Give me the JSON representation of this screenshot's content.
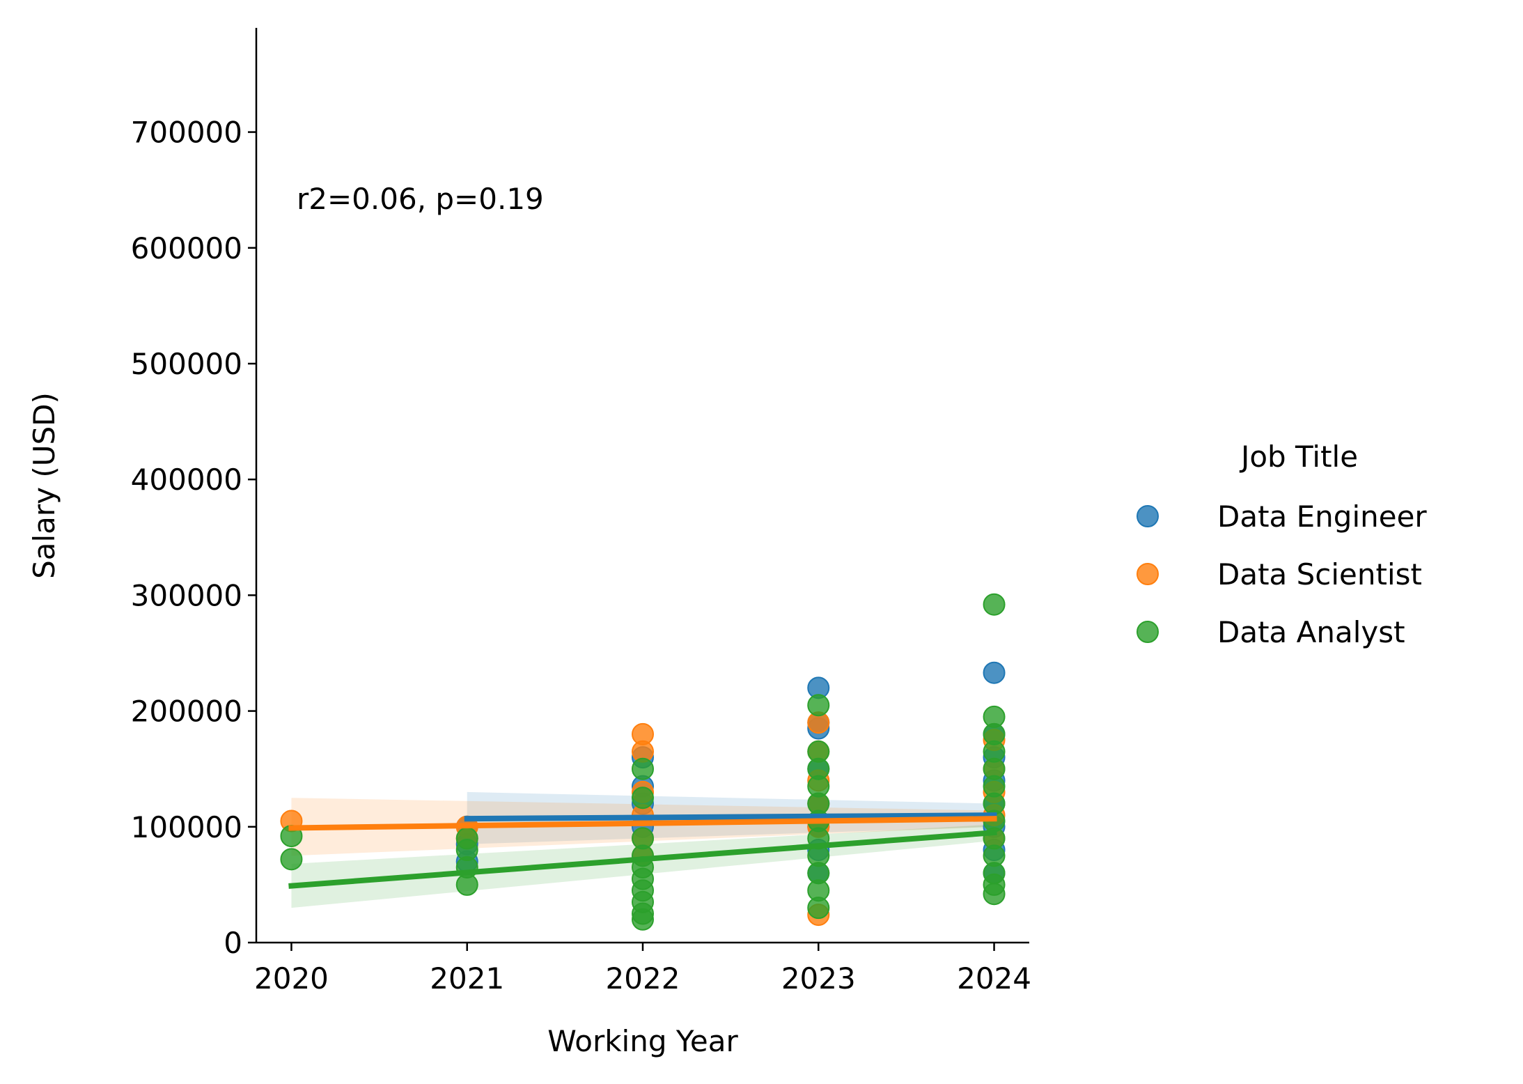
{
  "chart_data": {
    "type": "scatter",
    "xlabel": "Working Year",
    "ylabel": "Salary (USD)",
    "xlim": [
      2019.8,
      2024.2
    ],
    "ylim": [
      0,
      790000
    ],
    "xticks": [
      "2020",
      "2021",
      "2022",
      "2023",
      "2024"
    ],
    "yticks": [
      "0",
      "100000",
      "200000",
      "300000",
      "400000",
      "500000",
      "600000",
      "700000"
    ],
    "annotation": "r2=0.06, p=0.19",
    "grid": false,
    "legend": {
      "title": "Job Title",
      "placement": "right"
    },
    "series": [
      {
        "name": "Data Engineer",
        "color": "#1f77b4",
        "points": [
          [
            2021,
            70000
          ],
          [
            2021,
            85000
          ],
          [
            2021,
            100000
          ],
          [
            2022,
            160000
          ],
          [
            2022,
            135000
          ],
          [
            2022,
            120000
          ],
          [
            2022,
            100000
          ],
          [
            2023,
            220000
          ],
          [
            2023,
            190000
          ],
          [
            2023,
            185000
          ],
          [
            2023,
            150000
          ],
          [
            2023,
            120000
          ],
          [
            2023,
            100000
          ],
          [
            2023,
            80000
          ],
          [
            2023,
            60000
          ],
          [
            2024,
            233000
          ],
          [
            2024,
            180000
          ],
          [
            2024,
            160000
          ],
          [
            2024,
            140000
          ],
          [
            2024,
            120000
          ],
          [
            2024,
            100000
          ],
          [
            2024,
            80000
          ],
          [
            2024,
            60000
          ]
        ],
        "fit": {
          "x": [
            2021,
            2024
          ],
          "y": [
            107000,
            110000
          ]
        },
        "ci": {
          "x": [
            2021,
            2024
          ],
          "lower": [
            85000,
            100000
          ],
          "upper": [
            130000,
            120000
          ]
        }
      },
      {
        "name": "Data Scientist",
        "color": "#ff7f0e",
        "points": [
          [
            2020,
            105000
          ],
          [
            2021,
            100000
          ],
          [
            2021,
            90000
          ],
          [
            2022,
            180000
          ],
          [
            2022,
            165000
          ],
          [
            2022,
            130000
          ],
          [
            2022,
            110000
          ],
          [
            2022,
            90000
          ],
          [
            2022,
            75000
          ],
          [
            2023,
            190000
          ],
          [
            2023,
            165000
          ],
          [
            2023,
            140000
          ],
          [
            2023,
            120000
          ],
          [
            2023,
            100000
          ],
          [
            2023,
            24000
          ],
          [
            2024,
            175000
          ],
          [
            2024,
            150000
          ],
          [
            2024,
            130000
          ],
          [
            2024,
            110000
          ],
          [
            2024,
            90000
          ]
        ],
        "fit": {
          "x": [
            2020,
            2024
          ],
          "y": [
            99000,
            107000
          ]
        },
        "ci": {
          "x": [
            2020,
            2024
          ],
          "lower": [
            75000,
            100000
          ],
          "upper": [
            125000,
            114000
          ]
        }
      },
      {
        "name": "Data Analyst",
        "color": "#2ca02c",
        "points": [
          [
            2020,
            92000
          ],
          [
            2020,
            72000
          ],
          [
            2021,
            90000
          ],
          [
            2021,
            80000
          ],
          [
            2021,
            65000
          ],
          [
            2021,
            50000
          ],
          [
            2022,
            150000
          ],
          [
            2022,
            125000
          ],
          [
            2022,
            90000
          ],
          [
            2022,
            75000
          ],
          [
            2022,
            65000
          ],
          [
            2022,
            55000
          ],
          [
            2022,
            45000
          ],
          [
            2022,
            35000
          ],
          [
            2022,
            25000
          ],
          [
            2022,
            20000
          ],
          [
            2023,
            205000
          ],
          [
            2023,
            165000
          ],
          [
            2023,
            150000
          ],
          [
            2023,
            135000
          ],
          [
            2023,
            120000
          ],
          [
            2023,
            105000
          ],
          [
            2023,
            90000
          ],
          [
            2023,
            75000
          ],
          [
            2023,
            60000
          ],
          [
            2023,
            45000
          ],
          [
            2023,
            30000
          ],
          [
            2024,
            292000
          ],
          [
            2024,
            195000
          ],
          [
            2024,
            180000
          ],
          [
            2024,
            165000
          ],
          [
            2024,
            150000
          ],
          [
            2024,
            135000
          ],
          [
            2024,
            120000
          ],
          [
            2024,
            105000
          ],
          [
            2024,
            90000
          ],
          [
            2024,
            75000
          ],
          [
            2024,
            60000
          ],
          [
            2024,
            50000
          ],
          [
            2024,
            42000
          ]
        ],
        "fit": {
          "x": [
            2020,
            2024
          ],
          "y": [
            49000,
            95000
          ]
        },
        "ci": {
          "x": [
            2020,
            2024
          ],
          "lower": [
            30000,
            88000
          ],
          "upper": [
            68000,
            102000
          ]
        }
      }
    ]
  }
}
